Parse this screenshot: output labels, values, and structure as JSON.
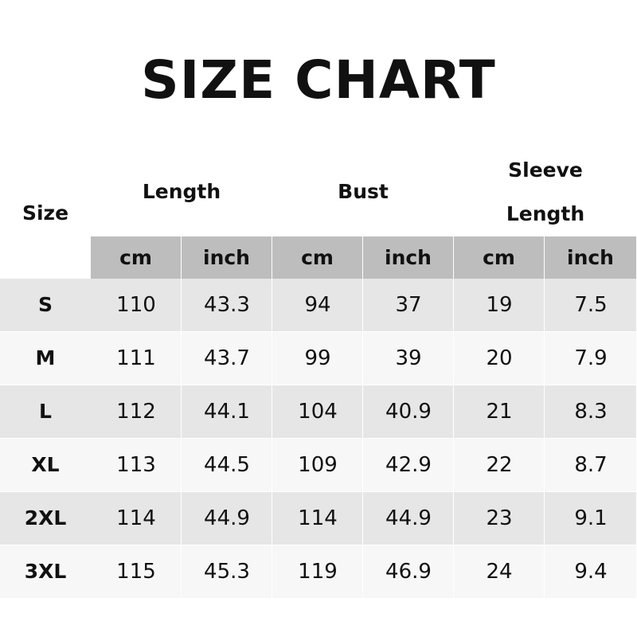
{
  "title": "SIZE CHART",
  "headers": {
    "size": "Size",
    "length": "Length",
    "bust": "Bust",
    "sleeve_line1": "Sleeve",
    "sleeve_line2": "Length"
  },
  "units": [
    "cm",
    "inch",
    "cm",
    "inch",
    "cm",
    "inch"
  ],
  "rows": [
    [
      "S",
      "110",
      "43.3",
      "94",
      "37",
      "19",
      "7.5"
    ],
    [
      "M",
      "111",
      "43.7",
      "99",
      "39",
      "20",
      "7.9"
    ],
    [
      "L",
      "112",
      "44.1",
      "104",
      "40.9",
      "21",
      "8.3"
    ],
    [
      "XL",
      "113",
      "44.5",
      "109",
      "42.9",
      "22",
      "8.7"
    ],
    [
      "2XL",
      "114",
      "44.9",
      "114",
      "44.9",
      "23",
      "9.1"
    ],
    [
      "3XL",
      "115",
      "45.3",
      "119",
      "46.9",
      "24",
      "9.4"
    ]
  ],
  "colors": {
    "unit_header": "#bdbdbd",
    "row_odd": "#e6e6e6",
    "row_even": "#f7f7f7"
  }
}
